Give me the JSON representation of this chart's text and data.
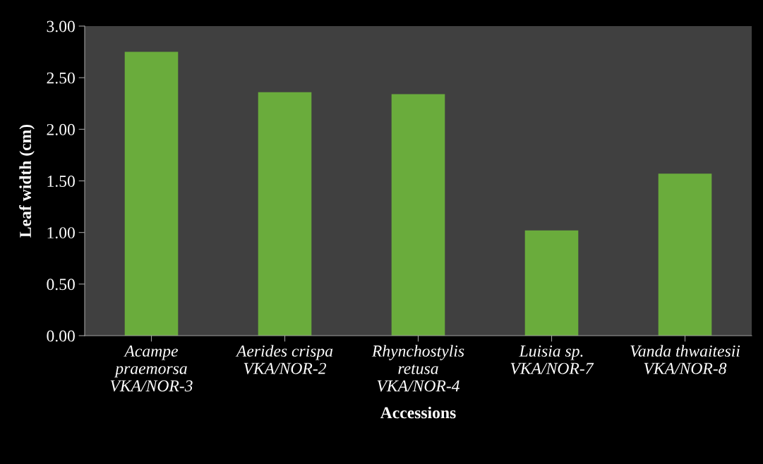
{
  "chart_data": {
    "type": "bar",
    "xlabel": "Accessions",
    "ylabel": "Leaf width (cm)",
    "categories": [
      "Acampe\npraemorsa\nVKA/NOR-3",
      "Aerides crispa\nVKA/NOR-2",
      "Rhynchostylis\nretusa\nVKA/NOR-4",
      "Luisia sp.\nVKA/NOR-7",
      "Vanda thwaitesii\nVKA/NOR-8"
    ],
    "values": [
      2.75,
      2.36,
      2.34,
      1.02,
      1.57
    ],
    "color": "#6aac3c",
    "ylim": [
      0,
      3
    ],
    "yticks": [
      {
        "value": 0,
        "label": "0.00"
      },
      {
        "value": 0.5,
        "label": "0.50"
      },
      {
        "value": 1,
        "label": "1.00"
      },
      {
        "value": 1.5,
        "label": "1.50"
      },
      {
        "value": 2,
        "label": "2.00"
      },
      {
        "value": 2.5,
        "label": "2.50"
      },
      {
        "value": 3,
        "label": "3.00"
      }
    ],
    "grid": false,
    "legend": false
  }
}
